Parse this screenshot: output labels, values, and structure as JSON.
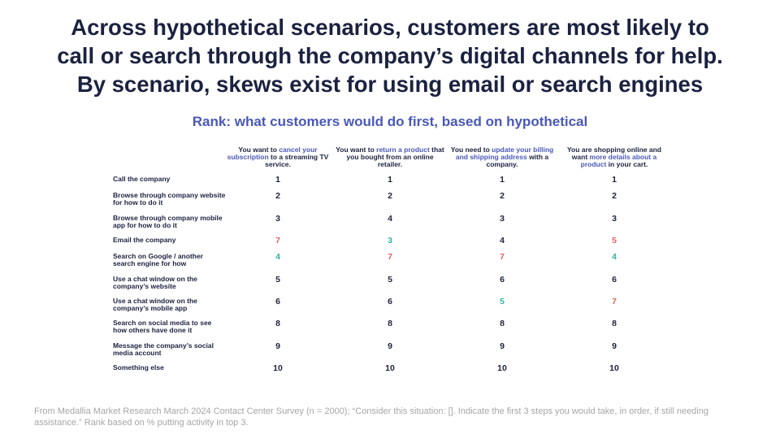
{
  "title_lines": [
    "Across hypothetical scenarios, customers are most likely to",
    "call or search through the company’s digital channels for help.",
    "By scenario, skews exist for using email or search engines"
  ],
  "colors": {
    "default": "#1b2240",
    "worse": "#e5605a",
    "better": "#2db5a4",
    "highlight": "#4a58b8",
    "footnote": "#a6a6a6"
  },
  "chart_data": {
    "type": "table",
    "subtitle": "Rank: what customers would do first, based on hypothetical",
    "columns": [
      [
        {
          "t": "You want to ",
          "h": false
        },
        {
          "t": "cancel your subscription",
          "h": true
        },
        {
          "t": " to a streaming TV service.",
          "h": false
        }
      ],
      [
        {
          "t": "You want to ",
          "h": false
        },
        {
          "t": "return a product",
          "h": true
        },
        {
          "t": " that you bought from an online retailer.",
          "h": false
        }
      ],
      [
        {
          "t": "You need to ",
          "h": false
        },
        {
          "t": "update your billing and shipping address",
          "h": true
        },
        {
          "t": " with a company.",
          "h": false
        }
      ],
      [
        {
          "t": "You are shopping online and want ",
          "h": false
        },
        {
          "t": "more details about a product",
          "h": true
        },
        {
          "t": " in your cart.",
          "h": false
        }
      ]
    ],
    "rows": [
      {
        "label": "Call the company",
        "ranks": [
          1,
          1,
          1,
          1
        ],
        "highlight": [
          "",
          "",
          "",
          ""
        ]
      },
      {
        "label": "Browse through company website for how to do it",
        "ranks": [
          2,
          2,
          2,
          2
        ],
        "highlight": [
          "",
          "",
          "",
          ""
        ]
      },
      {
        "label": "Browse through company mobile app for how to do it",
        "ranks": [
          3,
          4,
          3,
          3
        ],
        "highlight": [
          "",
          "",
          "",
          ""
        ]
      },
      {
        "label": "Email the company",
        "ranks": [
          7,
          3,
          4,
          5
        ],
        "highlight": [
          "worse",
          "better",
          "",
          "worse"
        ]
      },
      {
        "label": "Search on Google / another search engine for how",
        "ranks": [
          4,
          7,
          7,
          4
        ],
        "highlight": [
          "better",
          "worse",
          "worse",
          "better"
        ]
      },
      {
        "label": "Use a chat window on the company’s website",
        "ranks": [
          5,
          5,
          6,
          6
        ],
        "highlight": [
          "",
          "",
          "",
          ""
        ]
      },
      {
        "label": "Use a chat window on the company’s mobile app",
        "ranks": [
          6,
          6,
          5,
          7
        ],
        "highlight": [
          "",
          "",
          "better",
          "worse"
        ]
      },
      {
        "label": "Search on social media to see how others have done it",
        "ranks": [
          8,
          8,
          8,
          8
        ],
        "highlight": [
          "",
          "",
          "",
          ""
        ]
      },
      {
        "label": "Message the company’s social media account",
        "ranks": [
          9,
          9,
          9,
          9
        ],
        "highlight": [
          "",
          "",
          "",
          ""
        ]
      },
      {
        "label": "Something else",
        "ranks": [
          10,
          10,
          10,
          10
        ],
        "highlight": [
          "",
          "",
          "",
          ""
        ]
      }
    ]
  },
  "footnote": "From Medallia Market Research March 2024 Contact Center Survey (n = 2000); “Consider this situation: [].  Indicate the first 3 steps you would take, in order, if still needing assistance.” Rank based on % putting activity in top 3."
}
